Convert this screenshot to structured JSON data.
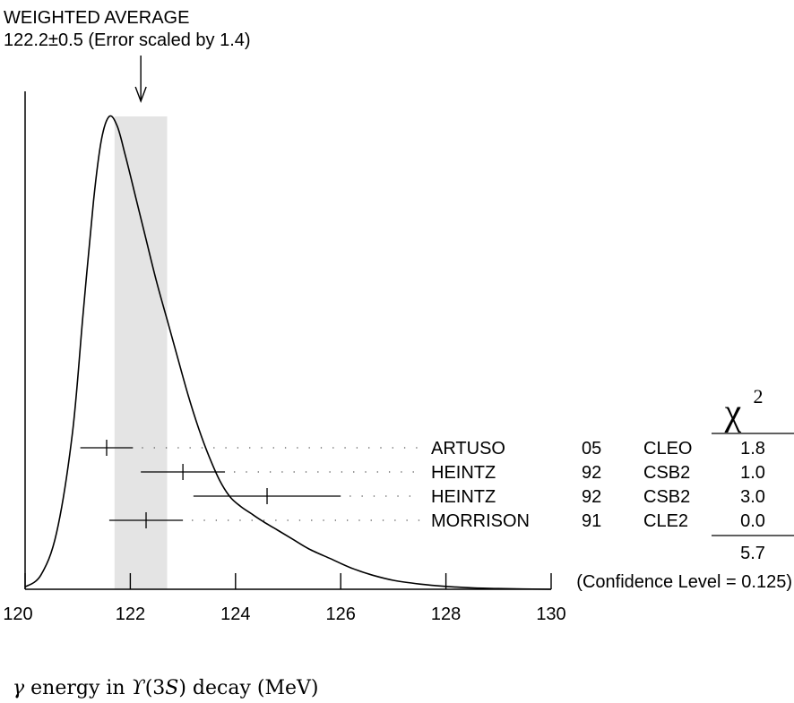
{
  "chart_data": {
    "type": "ideogram",
    "title": "WEIGHTED AVERAGE",
    "subtitle": "122.2±0.5 (Error scaled by 1.4)",
    "xlabel_parts": [
      "γ",
      " energy in ",
      "ϒ",
      "(3",
      "S",
      ") decay (MeV)"
    ],
    "xlim": [
      120,
      130
    ],
    "xticks": [
      120,
      122,
      124,
      126,
      128,
      130
    ],
    "average": 122.2,
    "band": [
      121.7,
      122.7
    ],
    "chi2_header": "χ",
    "chi2_header_sup": "2",
    "measurements": [
      {
        "author": "ARTUSO",
        "year": "05",
        "experiment": "CLEO",
        "chi2": "1.8",
        "value": 121.55,
        "low": 121.05,
        "high": 122.05
      },
      {
        "author": "HEINTZ",
        "year": "92",
        "experiment": "CSB2",
        "chi2": "1.0",
        "value": 123.0,
        "low": 122.2,
        "high": 123.8
      },
      {
        "author": "HEINTZ",
        "year": "92",
        "experiment": "CSB2",
        "chi2": "3.0",
        "value": 124.6,
        "low": 123.2,
        "high": 126.0
      },
      {
        "author": "MORRISON",
        "year": "91",
        "experiment": "CLE2",
        "chi2": "0.0",
        "value": 122.3,
        "low": 121.6,
        "high": 123.0
      }
    ],
    "chi2_total": "5.7",
    "confidence_level": "(Confidence Level = 0.125)",
    "ideogram_curve": [
      [
        120.0,
        0.005
      ],
      [
        120.3,
        0.03
      ],
      [
        120.6,
        0.12
      ],
      [
        120.9,
        0.33
      ],
      [
        121.1,
        0.58
      ],
      [
        121.3,
        0.82
      ],
      [
        121.45,
        0.95
      ],
      [
        121.6,
        1.0
      ],
      [
        121.75,
        0.98
      ],
      [
        121.9,
        0.92
      ],
      [
        122.1,
        0.83
      ],
      [
        122.3,
        0.74
      ],
      [
        122.5,
        0.65
      ],
      [
        122.7,
        0.57
      ],
      [
        122.9,
        0.49
      ],
      [
        123.1,
        0.41
      ],
      [
        123.3,
        0.34
      ],
      [
        123.5,
        0.28
      ],
      [
        123.7,
        0.23
      ],
      [
        123.9,
        0.195
      ],
      [
        124.1,
        0.175
      ],
      [
        124.3,
        0.16
      ],
      [
        124.5,
        0.145
      ],
      [
        124.8,
        0.125
      ],
      [
        125.1,
        0.105
      ],
      [
        125.4,
        0.085
      ],
      [
        125.8,
        0.065
      ],
      [
        126.2,
        0.045
      ],
      [
        126.6,
        0.03
      ],
      [
        127.0,
        0.019
      ],
      [
        127.5,
        0.011
      ],
      [
        128.0,
        0.006
      ],
      [
        128.5,
        0.003
      ],
      [
        129.0,
        0.0015
      ],
      [
        130.0,
        0.0
      ]
    ]
  }
}
